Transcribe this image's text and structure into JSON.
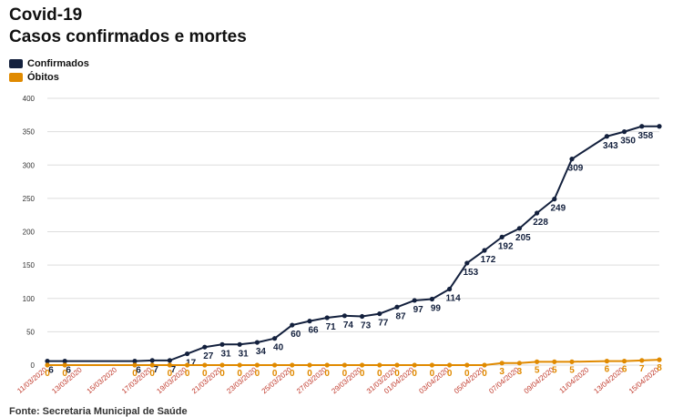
{
  "title": "Covid-19",
  "subtitle": "Casos confirmados e mortes",
  "legend": [
    {
      "name": "Confirmados",
      "color": "#13203d"
    },
    {
      "name": "Óbitos",
      "color": "#e08a00"
    }
  ],
  "source": "Fonte: Secretaria Municipal de Saúde",
  "chart_data": {
    "type": "line",
    "title": "Covid-19",
    "subtitle": "Casos confirmados e mortes",
    "ylim": [
      0,
      400
    ],
    "yticks": [
      0,
      50,
      100,
      150,
      200,
      250,
      300,
      350,
      400
    ],
    "grid": true,
    "legend_position": "top-left",
    "xtick_labels": [
      "11/03/2020",
      "13/03/2020",
      "15/03/2020",
      "17/03/2020",
      "19/03/2020",
      "21/03/2020",
      "23/03/2020",
      "25/03/2020",
      "27/03/2020",
      "29/03/2020",
      "31/03/2020",
      "01/04/2020",
      "03/04/2020",
      "05/04/2020",
      "07/04/2020",
      "09/04/2020",
      "11/04/2020",
      "13/04/2020",
      "15/04/2020"
    ],
    "x": [
      "2020-03-11",
      "2020-03-12",
      "2020-03-16",
      "2020-03-17",
      "2020-03-18",
      "2020-03-19",
      "2020-03-20",
      "2020-03-21",
      "2020-03-22",
      "2020-03-23",
      "2020-03-24",
      "2020-03-25",
      "2020-03-26",
      "2020-03-27",
      "2020-03-28",
      "2020-03-29",
      "2020-03-30",
      "2020-03-31",
      "2020-04-01",
      "2020-04-02",
      "2020-04-03",
      "2020-04-04",
      "2020-04-05",
      "2020-04-06",
      "2020-04-07",
      "2020-04-08",
      "2020-04-09",
      "2020-04-10",
      "2020-04-12",
      "2020-04-13",
      "2020-04-14",
      "2020-04-15"
    ],
    "series": [
      {
        "name": "Confirmados",
        "color": "#13203d",
        "values": [
          6,
          6,
          6,
          7,
          7,
          17,
          27,
          31,
          31,
          34,
          40,
          60,
          66,
          71,
          74,
          73,
          77,
          87,
          97,
          99,
          114,
          153,
          172,
          192,
          205,
          228,
          249,
          309,
          343,
          350,
          358,
          358
        ],
        "labels": [
          "6",
          "6",
          "6",
          "7",
          "7",
          "17",
          "27",
          "31",
          "31",
          "34",
          "40",
          "60",
          "66",
          "71",
          "74",
          "73",
          "77",
          "87",
          "97",
          "99",
          "114",
          "153",
          "172",
          "192",
          "205",
          "228",
          "249",
          "309",
          "343",
          "350",
          "358",
          ""
        ]
      },
      {
        "name": "Óbitos",
        "color": "#e08a00",
        "values": [
          0,
          0,
          0,
          0,
          0,
          0,
          0,
          0,
          0,
          0,
          0,
          0,
          0,
          0,
          0,
          0,
          0,
          0,
          0,
          0,
          0,
          0,
          0,
          3,
          3,
          5,
          5,
          5,
          6,
          6,
          7,
          8
        ],
        "labels": [
          "0",
          "0",
          "0",
          "0",
          "0",
          "0",
          "0",
          "0",
          "0",
          "0",
          "0",
          "0",
          "0",
          "0",
          "0",
          "0",
          "0",
          "0",
          "0",
          "0",
          "0",
          "0",
          "0",
          "3",
          "3",
          "5",
          "5",
          "5",
          "6",
          "6",
          "7",
          "8"
        ]
      }
    ]
  }
}
